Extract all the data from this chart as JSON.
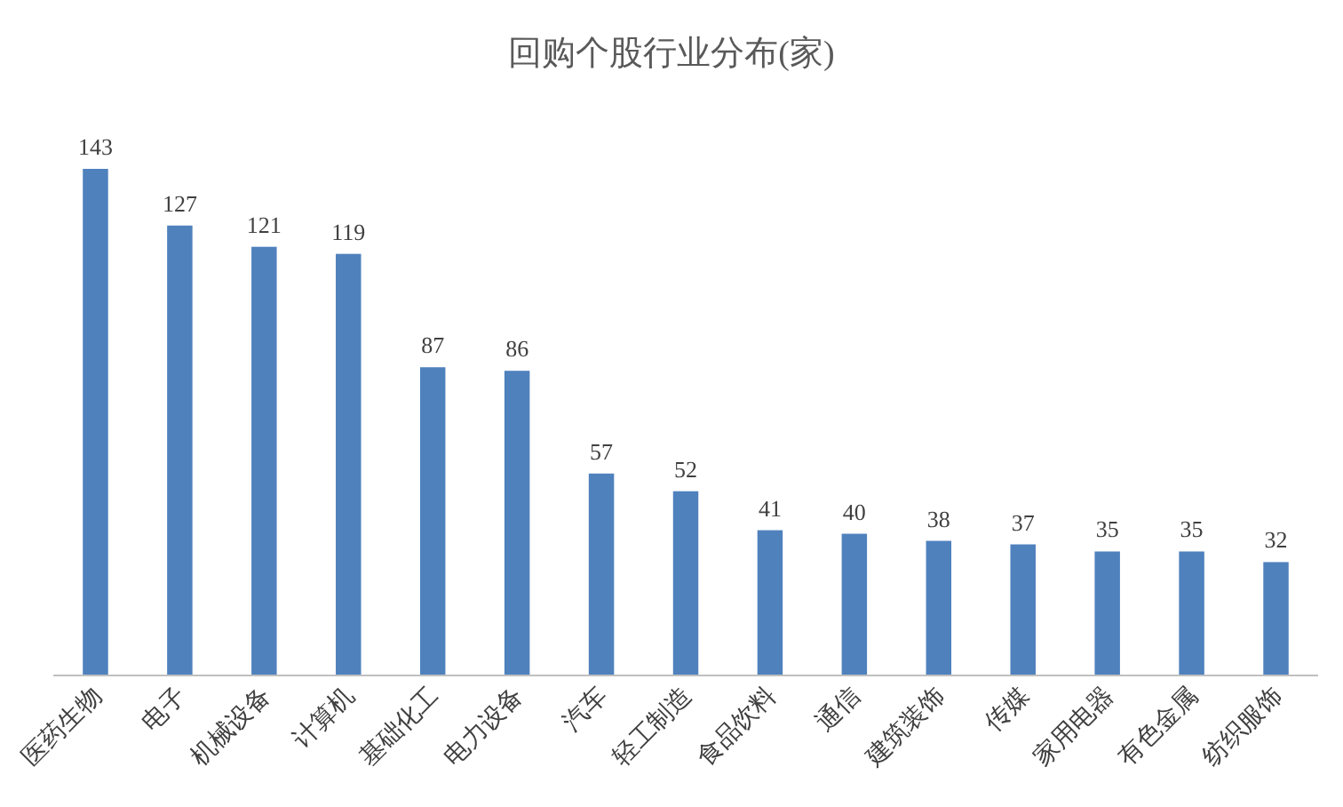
{
  "chart_data": {
    "type": "bar",
    "title": "回购个股行业分布(家)",
    "categories": [
      "医药生物",
      "电子",
      "机械设备",
      "计算机",
      "基础化工",
      "电力设备",
      "汽车",
      "轻工制造",
      "食品饮料",
      "通信",
      "建筑装饰",
      "传媒",
      "家用电器",
      "有色金属",
      "纺织服饰"
    ],
    "values": [
      143,
      127,
      121,
      119,
      87,
      86,
      57,
      52,
      41,
      40,
      38,
      37,
      35,
      35,
      32
    ],
    "color": "#4f81bd",
    "data_labels": true
  }
}
